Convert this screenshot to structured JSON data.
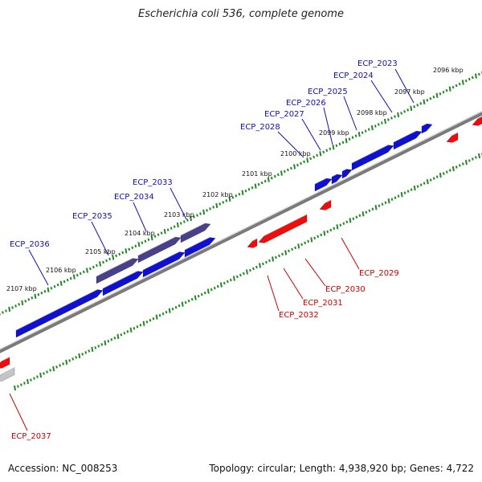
{
  "title": "Escherichia coli 536, complete genome",
  "footer": {
    "accession": "Accession: NC_008253",
    "topology": "Topology: circular; Length: 4,938,920 bp; Genes: 4,722"
  },
  "colors": {
    "forward_gene": "#1010d0",
    "forward_highlight": "#4a3f8a",
    "reverse_gene": "#ee0c0c",
    "reverse_gray": "#c4c4c4",
    "backbone": "#7a7a7a",
    "ticks": "#1f8a1f",
    "forward_label": "#1010b0",
    "reverse_label": "#cc0000"
  },
  "kbp_labels": [
    "2096 kbp",
    "2097 kbp",
    "2098 kbp",
    "2099 kbp",
    "2100 kbp",
    "2101 kbp",
    "2102 kbp",
    "2103 kbp",
    "2104 kbp",
    "2105 kbp",
    "2106 kbp",
    "2107 kbp"
  ],
  "forward_gene_labels": [
    "ECP_2023",
    "ECP_2024",
    "ECP_2025",
    "ECP_2026",
    "ECP_2027",
    "ECP_2028",
    "ECP_2033",
    "ECP_2034",
    "ECP_2035",
    "ECP_2036"
  ],
  "reverse_gene_labels": [
    "ECP_2029",
    "ECP_2030",
    "ECP_2031",
    "ECP_2032",
    "ECP_2037"
  ]
}
